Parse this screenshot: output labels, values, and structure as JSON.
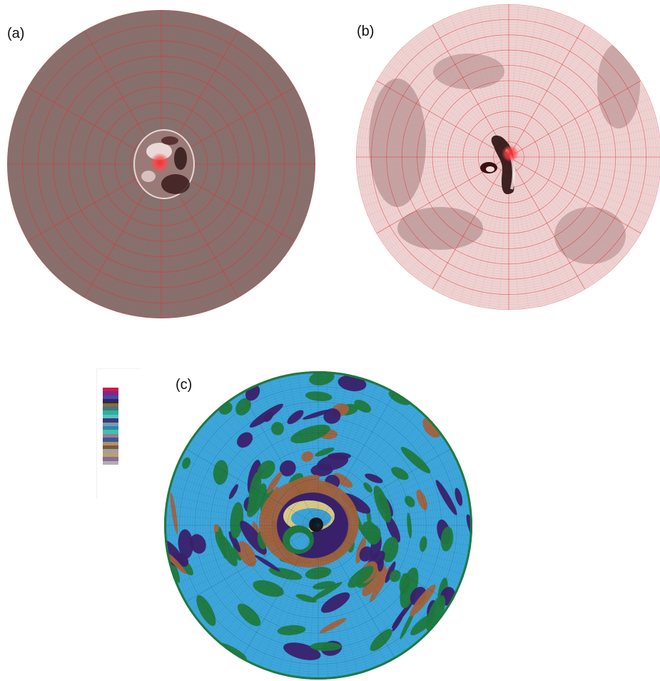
{
  "panels": {
    "a": {
      "label": "(a)"
    },
    "b": {
      "label": "(b)"
    },
    "c": {
      "label": "(c)"
    }
  },
  "colors": {
    "panel_a_fill": "#8c6d6a",
    "panel_b_fill": "#efd3d3",
    "mesh_red": "#e03030",
    "mesh_cyan": "#3aa0a0",
    "panel_c_green": "#1f7a3c",
    "panel_c_blue": "#3da7dc",
    "panel_c_purple": "#3b1f6b",
    "panel_c_brown": "#a3623c",
    "hot_spot": "#ff3030"
  },
  "colorbar": {
    "colors": [
      "#d8154a",
      "#7a2a8a",
      "#4a4aa0",
      "#2a2a5a",
      "#8a6a3a",
      "#3a7a7a",
      "#2ab0a0",
      "#5ac0c0",
      "#3a3a7a",
      "#7a9ab0",
      "#2a8aa0",
      "#40c0b0",
      "#9a7a9a",
      "#3a5a8a",
      "#b0906a",
      "#7a5a3a",
      "#a0a0a0",
      "#c0a060",
      "#8a6aa0",
      "#b0b0b0"
    ]
  }
}
